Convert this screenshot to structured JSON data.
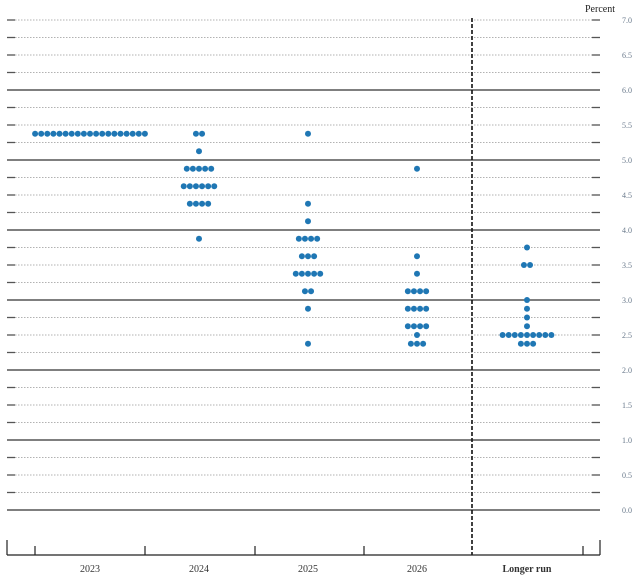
{
  "chart_data": {
    "type": "scatter",
    "subtype": "dot-plot",
    "title": "",
    "unit_label": "Percent",
    "xlabel": "",
    "ylabel": "Percent",
    "ylim": [
      0.0,
      7.0
    ],
    "y_tick_labels": [
      "7.0",
      "6.5",
      "6.0",
      "5.5",
      "5.0",
      "4.5",
      "4.0",
      "3.5",
      "3.0",
      "2.5",
      "2.0",
      "1.5",
      "1.0",
      "0.5",
      "0.0"
    ],
    "y_gridline_step": 0.25,
    "y_axis_position": "right",
    "categories": [
      "2023",
      "2024",
      "2025",
      "2026",
      "Longer run"
    ],
    "grid": true,
    "legend": null,
    "series": [
      {
        "name": "2023",
        "dots": [
          {
            "value": 5.375,
            "count": 19
          }
        ]
      },
      {
        "name": "2024",
        "dots": [
          {
            "value": 5.375,
            "count": 2
          },
          {
            "value": 5.125,
            "count": 1
          },
          {
            "value": 4.875,
            "count": 5
          },
          {
            "value": 4.625,
            "count": 6
          },
          {
            "value": 4.375,
            "count": 4
          },
          {
            "value": 3.875,
            "count": 1
          }
        ]
      },
      {
        "name": "2025",
        "dots": [
          {
            "value": 5.375,
            "count": 1
          },
          {
            "value": 4.375,
            "count": 1
          },
          {
            "value": 4.125,
            "count": 1
          },
          {
            "value": 3.875,
            "count": 4
          },
          {
            "value": 3.625,
            "count": 3
          },
          {
            "value": 3.375,
            "count": 5
          },
          {
            "value": 3.125,
            "count": 2
          },
          {
            "value": 2.875,
            "count": 1
          },
          {
            "value": 2.375,
            "count": 1
          }
        ]
      },
      {
        "name": "2026",
        "dots": [
          {
            "value": 4.875,
            "count": 1
          },
          {
            "value": 3.625,
            "count": 1
          },
          {
            "value": 3.375,
            "count": 1
          },
          {
            "value": 3.125,
            "count": 4
          },
          {
            "value": 2.875,
            "count": 4
          },
          {
            "value": 2.625,
            "count": 4
          },
          {
            "value": 2.5,
            "count": 1
          },
          {
            "value": 2.375,
            "count": 3
          }
        ]
      },
      {
        "name": "Longer run",
        "dots": [
          {
            "value": 3.75,
            "count": 1
          },
          {
            "value": 3.5,
            "count": 2
          },
          {
            "value": 3.0,
            "count": 1
          },
          {
            "value": 2.875,
            "count": 1
          },
          {
            "value": 2.75,
            "count": 1
          },
          {
            "value": 2.625,
            "count": 1
          },
          {
            "value": 2.5,
            "count": 9
          },
          {
            "value": 2.375,
            "count": 3
          }
        ]
      }
    ],
    "annotations": [
      "Vertical dashed separator between 2026 and Longer run"
    ],
    "colors": {
      "dot": "#1f77b4",
      "grid_major": "#333333",
      "grid_minor": "#999999"
    }
  }
}
